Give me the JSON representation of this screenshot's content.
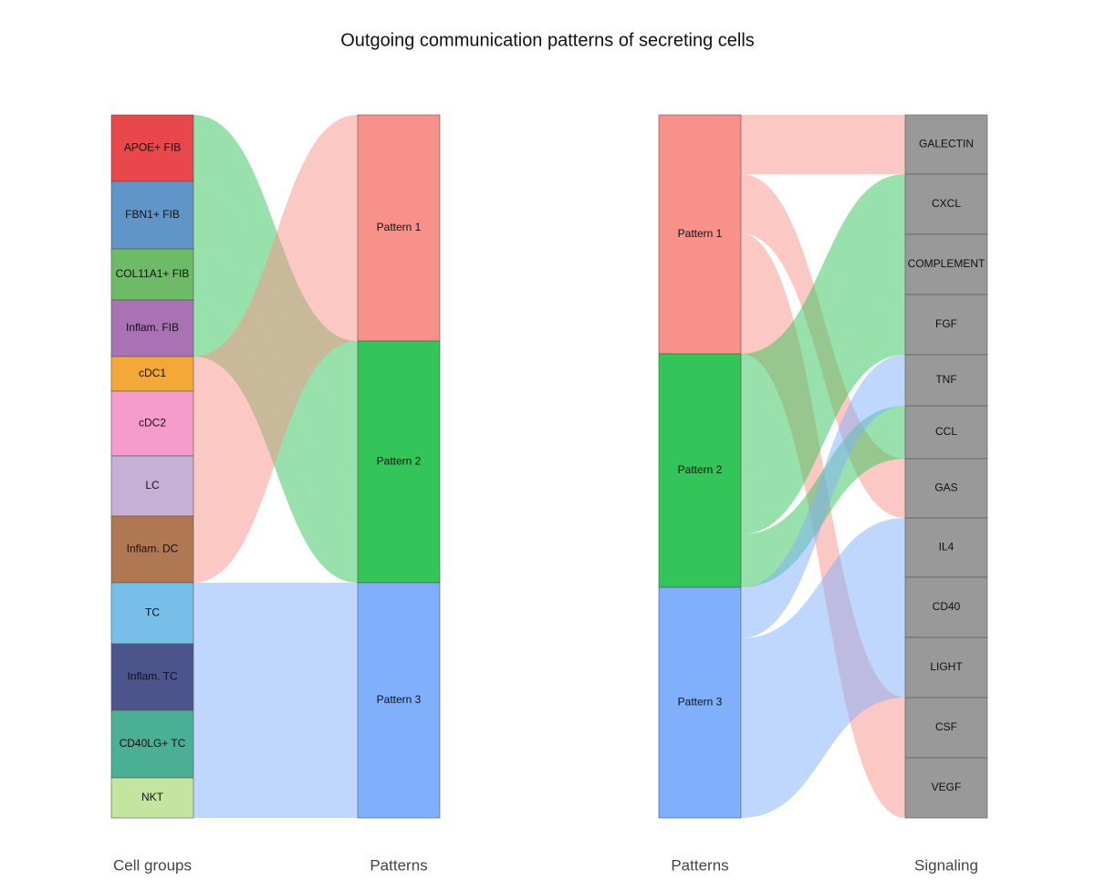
{
  "title": "Outgoing communication patterns of secreting cells",
  "chart_data": [
    {
      "type": "sankey",
      "left_label": "Cell groups",
      "right_label": "Patterns",
      "left_nodes": [
        {
          "name": "APOE+ FIB",
          "color": "#e8474b"
        },
        {
          "name": "FBN1+ FIB",
          "color": "#6096c7"
        },
        {
          "name": "COL11A1+ FIB",
          "color": "#6dba67"
        },
        {
          "name": "Inflam. FIB",
          "color": "#a972b4"
        },
        {
          "name": "cDC1",
          "color": "#f4a837"
        },
        {
          "name": "cDC2",
          "color": "#f69ccd"
        },
        {
          "name": "LC",
          "color": "#c6b0d5"
        },
        {
          "name": "Inflam. DC",
          "color": "#b07753"
        },
        {
          "name": "TC",
          "color": "#77bfe8"
        },
        {
          "name": "Inflam. TC",
          "color": "#4b558c"
        },
        {
          "name": "CD40LG+ TC",
          "color": "#4bb093"
        },
        {
          "name": "NKT",
          "color": "#c3e5a0"
        }
      ],
      "right_nodes": [
        {
          "name": "Pattern 1",
          "color": "#f8918a"
        },
        {
          "name": "Pattern 2",
          "color": "#33c45a"
        },
        {
          "name": "Pattern 3",
          "color": "#80b0fc"
        }
      ],
      "links": [
        {
          "source": "APOE+ FIB",
          "target": "Pattern 2",
          "value": 73,
          "color": "#33c45a"
        },
        {
          "source": "FBN1+ FIB",
          "target": "Pattern 2",
          "value": 74,
          "color": "#33c45a"
        },
        {
          "source": "COL11A1+ FIB",
          "target": "Pattern 2",
          "value": 56,
          "color": "#33c45a"
        },
        {
          "source": "Inflam. FIB",
          "target": "Pattern 2",
          "value": 62,
          "color": "#33c45a"
        },
        {
          "source": "cDC1",
          "target": "Pattern 1",
          "value": 38,
          "color": "#f8918a"
        },
        {
          "source": "cDC2",
          "target": "Pattern 1",
          "value": 71,
          "color": "#f8918a"
        },
        {
          "source": "LC",
          "target": "Pattern 1",
          "value": 66,
          "color": "#f8918a"
        },
        {
          "source": "Inflam. DC",
          "target": "Pattern 1",
          "value": 73,
          "color": "#f8918a"
        },
        {
          "source": "TC",
          "target": "Pattern 3",
          "value": 67,
          "color": "#80b0fc"
        },
        {
          "source": "Inflam. TC",
          "target": "Pattern 3",
          "value": 73,
          "color": "#80b0fc"
        },
        {
          "source": "CD40LG+ TC",
          "target": "Pattern 3",
          "value": 74,
          "color": "#80b0fc"
        },
        {
          "source": "NKT",
          "target": "Pattern 3",
          "value": 44,
          "color": "#80b0fc"
        }
      ]
    },
    {
      "type": "sankey",
      "left_label": "Patterns",
      "right_label": "Signaling",
      "left_nodes": [
        {
          "name": "Pattern 1",
          "color": "#f8918a"
        },
        {
          "name": "Pattern 2",
          "color": "#33c45a"
        },
        {
          "name": "Pattern 3",
          "color": "#80b0fc"
        }
      ],
      "right_nodes": [
        {
          "name": "GALECTIN",
          "color": "#999999"
        },
        {
          "name": "CXCL",
          "color": "#999999"
        },
        {
          "name": "COMPLEMENT",
          "color": "#999999"
        },
        {
          "name": "FGF",
          "color": "#999999"
        },
        {
          "name": "TNF",
          "color": "#999999"
        },
        {
          "name": "CCL",
          "color": "#999999"
        },
        {
          "name": "GAS",
          "color": "#999999"
        },
        {
          "name": "IL4",
          "color": "#999999"
        },
        {
          "name": "CD40",
          "color": "#999999"
        },
        {
          "name": "LIGHT",
          "color": "#999999"
        },
        {
          "name": "CSF",
          "color": "#999999"
        },
        {
          "name": "VEGF",
          "color": "#999999"
        }
      ],
      "links": [
        {
          "source": "Pattern 1",
          "target": "GALECTIN",
          "value": 65,
          "color": "#f8918a"
        },
        {
          "source": "Pattern 1",
          "target": "GAS",
          "value": 65,
          "color": "#f8918a"
        },
        {
          "source": "Pattern 1",
          "target": "CSF",
          "value": 66,
          "color": "#f8918a"
        },
        {
          "source": "Pattern 1",
          "target": "VEGF",
          "value": 66,
          "color": "#f8918a"
        },
        {
          "source": "Pattern 2",
          "target": "CXCL",
          "value": 66,
          "color": "#33c45a"
        },
        {
          "source": "Pattern 2",
          "target": "COMPLEMENT",
          "value": 66,
          "color": "#33c45a"
        },
        {
          "source": "Pattern 2",
          "target": "FGF",
          "value": 66,
          "color": "#33c45a"
        },
        {
          "source": "Pattern 2",
          "target": "CCL",
          "value": 58,
          "color": "#33c45a"
        },
        {
          "source": "Pattern 3",
          "target": "TNF",
          "value": 56,
          "color": "#80b0fc"
        },
        {
          "source": "Pattern 3",
          "target": "IL4",
          "value": 65,
          "color": "#80b0fc"
        },
        {
          "source": "Pattern 3",
          "target": "CD40",
          "value": 66,
          "color": "#80b0fc"
        },
        {
          "source": "Pattern 3",
          "target": "LIGHT",
          "value": 66,
          "color": "#80b0fc"
        }
      ]
    }
  ]
}
